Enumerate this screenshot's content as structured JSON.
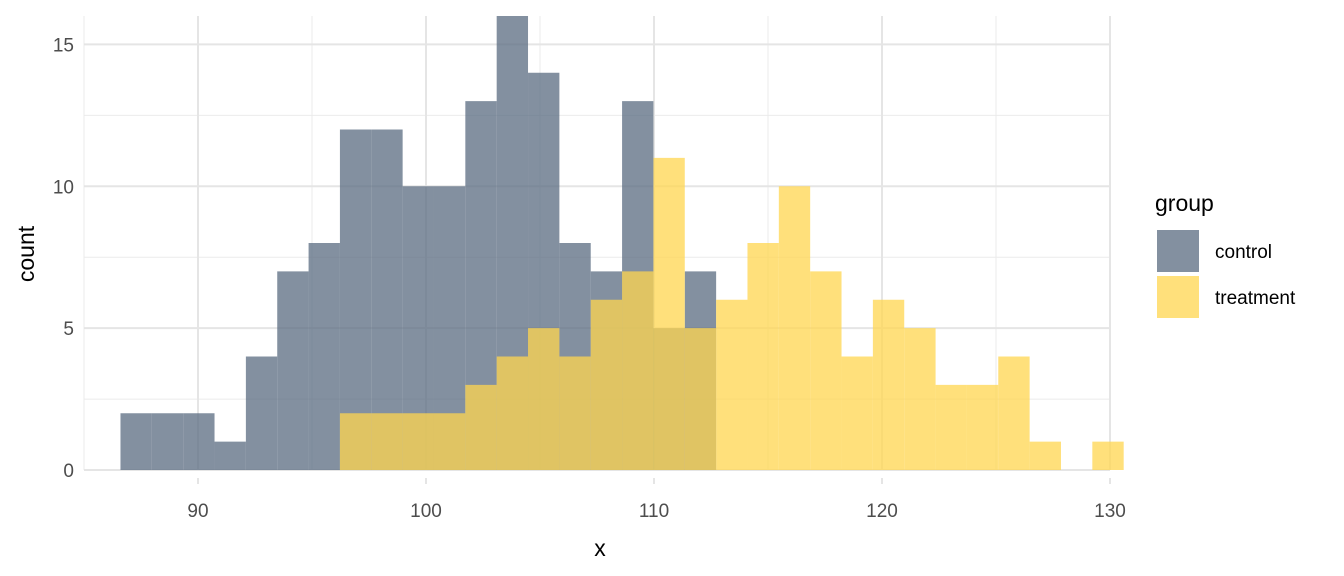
{
  "chart_data": {
    "type": "bar",
    "subtype": "overlapping-histogram",
    "xlabel": "x",
    "ylabel": "count",
    "xlim": [
      85,
      130
    ],
    "ylim": [
      0,
      16
    ],
    "x_ticks": [
      90,
      100,
      110,
      120,
      130
    ],
    "y_ticks": [
      0,
      5,
      10,
      15
    ],
    "grid": true,
    "legend": {
      "title": "group",
      "position": "right"
    },
    "bin_start": 86.6,
    "bin_width": 1.375,
    "series": [
      {
        "name": "control",
        "color": "#596b80",
        "values": [
          2,
          2,
          2,
          1,
          4,
          7,
          8,
          12,
          12,
          10,
          10,
          13,
          16,
          14,
          8,
          7,
          13,
          5,
          7,
          0,
          0,
          0,
          0,
          0,
          0,
          0,
          0,
          0,
          0,
          0
        ]
      },
      {
        "name": "treatment",
        "color": "#ffd54f",
        "values": [
          0,
          0,
          0,
          0,
          0,
          0,
          0,
          2,
          2,
          2,
          2,
          3,
          4,
          5,
          4,
          6,
          7,
          11,
          5,
          6,
          8,
          10,
          7,
          4,
          6,
          5,
          3,
          3,
          4,
          1,
          0,
          1
        ]
      }
    ]
  }
}
